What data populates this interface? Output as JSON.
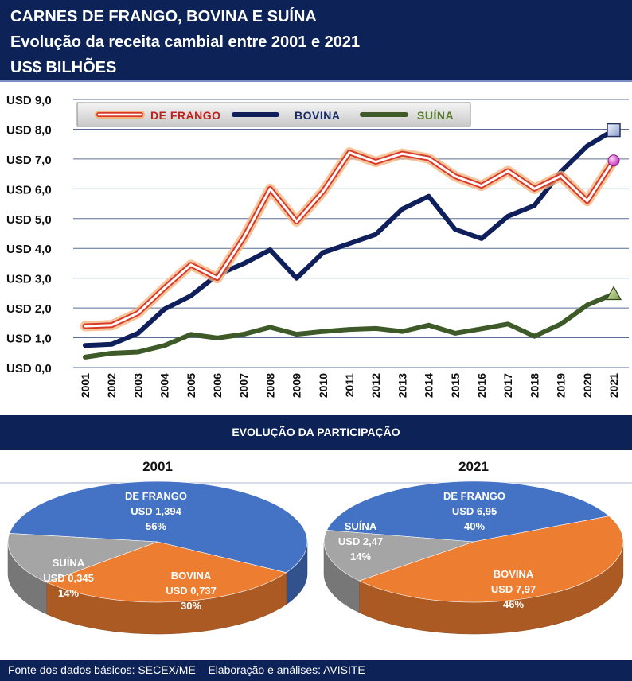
{
  "header": {
    "line1": "CARNES DE FRANGO, BOVINA E SUÍNA",
    "line2": "Evolução da receita cambial entre 2001 e 2021",
    "line3": "US$ BILHÕES"
  },
  "colors": {
    "frango": "#d83a2a",
    "frango_glow": "#f5b27a",
    "bovina": "#0f1f5c",
    "suina": "#3e5a28",
    "pie_frango": "#4472c4",
    "pie_bovina": "#ed7d31",
    "pie_suina": "#a5a5a5",
    "navy": "#0d2256"
  },
  "chart_data": [
    {
      "type": "line",
      "title": "CARNES DE FRANGO, BOVINA E SUÍNA",
      "ylim": [
        0,
        9
      ],
      "y_ticks": [
        "USD 0,0",
        "USD 1,0",
        "USD 2,0",
        "USD 3,0",
        "USD 4,0",
        "USD 5,0",
        "USD 6,0",
        "USD 7,0",
        "USD 8,0",
        "USD 9,0"
      ],
      "x": [
        "2001",
        "2002",
        "2003",
        "2004",
        "2005",
        "2006",
        "2007",
        "2008",
        "2009",
        "2010",
        "2011",
        "2012",
        "2013",
        "2014",
        "2015",
        "2016",
        "2017",
        "2018",
        "2019",
        "2020",
        "2021"
      ],
      "grid": true,
      "legend_position": "top-left",
      "series": [
        {
          "name": "DE FRANGO",
          "values": [
            1.39,
            1.42,
            1.83,
            2.67,
            3.45,
            3.0,
            4.36,
            6.0,
            4.9,
            5.91,
            7.22,
            6.9,
            7.18,
            7.02,
            6.42,
            6.1,
            6.6,
            6.0,
            6.43,
            5.59,
            6.95
          ]
        },
        {
          "name": "BOVINA",
          "values": [
            0.74,
            0.78,
            1.15,
            1.96,
            2.41,
            3.11,
            3.49,
            3.95,
            3.0,
            3.86,
            4.16,
            4.47,
            5.32,
            5.75,
            4.64,
            4.33,
            5.08,
            5.44,
            6.57,
            7.44,
            7.97
          ]
        },
        {
          "name": "SUÍNA",
          "values": [
            0.35,
            0.48,
            0.52,
            0.74,
            1.11,
            0.99,
            1.12,
            1.35,
            1.12,
            1.21,
            1.28,
            1.31,
            1.21,
            1.42,
            1.15,
            1.3,
            1.46,
            1.05,
            1.46,
            2.1,
            2.47
          ]
        }
      ]
    },
    {
      "type": "pie",
      "title": "2001",
      "slices": [
        {
          "name": "DE FRANGO",
          "label": "USD 1,394",
          "value": 1.394,
          "pct": "56%"
        },
        {
          "name": "BOVINA",
          "label": "USD 0,737",
          "value": 0.737,
          "pct": "30%"
        },
        {
          "name": "SUÍNA",
          "label": "USD 0,345",
          "value": 0.345,
          "pct": "14%"
        }
      ]
    },
    {
      "type": "pie",
      "title": "2021",
      "slices": [
        {
          "name": "DE FRANGO",
          "label": "USD 6,95",
          "value": 6.95,
          "pct": "40%"
        },
        {
          "name": "BOVINA",
          "label": "USD 7,97",
          "value": 7.97,
          "pct": "46%"
        },
        {
          "name": "SUÍNA",
          "label": "USD 2,47",
          "value": 2.47,
          "pct": "14%"
        }
      ]
    }
  ],
  "band_title": "EVOLUÇÃO DA PARTICIPAÇÃO",
  "footer": "Fonte dos dados básicos: SECEX/ME – Elaboração e análises: AVISITE"
}
